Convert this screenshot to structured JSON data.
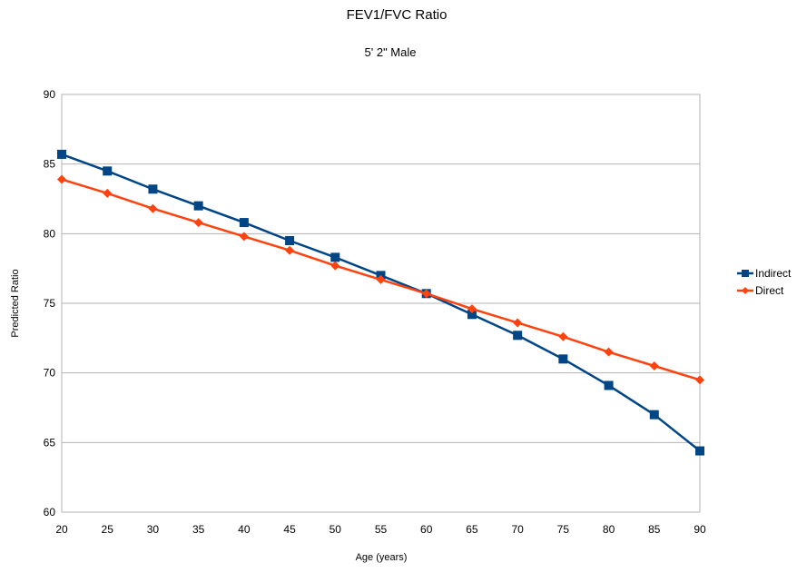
{
  "chart_data": {
    "type": "line",
    "title": "FEV1/FVC Ratio",
    "subtitle": "5' 2\" Male",
    "xlabel": "Age (years)",
    "ylabel": "Predicted Ratio",
    "x": [
      20,
      25,
      30,
      35,
      40,
      45,
      50,
      55,
      60,
      65,
      70,
      75,
      80,
      85,
      90
    ],
    "xlim": [
      20,
      90
    ],
    "ylim": [
      60,
      90
    ],
    "yticks": [
      60,
      65,
      70,
      75,
      80,
      85,
      90
    ],
    "grid": "horizontal",
    "legend_position": "right",
    "series": [
      {
        "name": "Indirect",
        "color": "#004586",
        "marker": "square",
        "values": [
          85.7,
          84.5,
          83.2,
          82.0,
          80.8,
          79.5,
          78.3,
          77.0,
          75.7,
          74.2,
          72.7,
          71.0,
          69.1,
          67.0,
          64.4
        ]
      },
      {
        "name": "Direct",
        "color": "#ff420e",
        "marker": "diamond",
        "values": [
          83.9,
          82.9,
          81.8,
          80.8,
          79.8,
          78.8,
          77.7,
          76.7,
          75.7,
          74.6,
          73.6,
          72.6,
          71.5,
          70.5,
          69.5
        ]
      }
    ]
  }
}
